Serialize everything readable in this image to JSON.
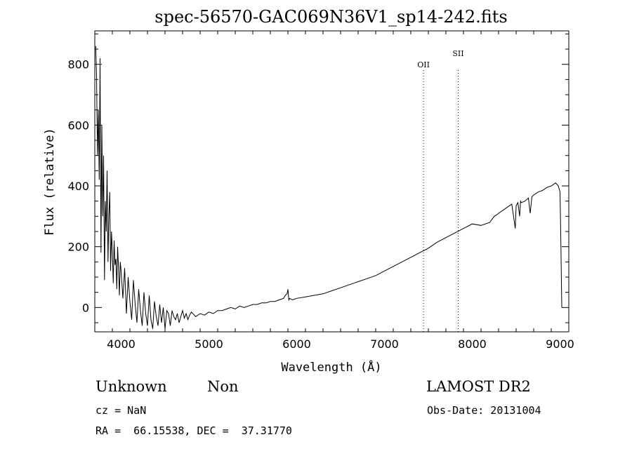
{
  "chart_data": {
    "type": "line",
    "title": "spec-56570-GAC069N36V1_sp14-242.fits",
    "xlabel": "Wavelength (Å)",
    "ylabel": "Flux (relative)",
    "xlim": [
      3700,
      9100
    ],
    "ylim": [
      -80,
      910
    ],
    "grid": false,
    "x_ticks": [
      4000,
      5000,
      6000,
      7000,
      8000,
      9000
    ],
    "y_ticks": [
      0,
      200,
      400,
      600,
      800
    ],
    "series": [
      {
        "x": [
          3710,
          3720,
          3730,
          3740,
          3750,
          3760,
          3770,
          3780,
          3790,
          3800,
          3810,
          3820,
          3830,
          3840,
          3850,
          3860,
          3870,
          3880,
          3890,
          3900,
          3910,
          3920,
          3930,
          3940,
          3950,
          3960,
          3970,
          3980,
          3990,
          4000,
          4020,
          4040,
          4060,
          4080,
          4100,
          4120,
          4140,
          4160,
          4180,
          4200,
          4220,
          4240,
          4260,
          4280,
          4300,
          4320,
          4340,
          4360,
          4380,
          4400,
          4420,
          4440,
          4460,
          4480,
          4500,
          4520,
          4540,
          4560,
          4580,
          4600,
          4620,
          4640,
          4660,
          4680,
          4700,
          4720,
          4740,
          4760,
          4780,
          4800,
          4850,
          4900,
          4950,
          5000,
          5050,
          5100,
          5150,
          5200,
          5250,
          5300,
          5350,
          5400,
          5450,
          5500,
          5550,
          5600,
          5650,
          5700,
          5750,
          5800,
          5850,
          5870,
          5890,
          5900,
          5910,
          5920,
          5950,
          6000,
          6100,
          6200,
          6300,
          6400,
          6500,
          6600,
          6700,
          6800,
          6900,
          7000,
          7100,
          7200,
          7300,
          7400,
          7500,
          7600,
          7700,
          7800,
          7900,
          8000,
          8100,
          8200,
          8250,
          8280,
          8300,
          8350,
          8400,
          8450,
          8490,
          8500,
          8520,
          8540,
          8550,
          8560,
          8600,
          8640,
          8660,
          8680,
          8700,
          8750,
          8800,
          8850,
          8900,
          8950,
          8980,
          9000,
          9010,
          9020
        ],
        "values": [
          860,
          760,
          500,
          650,
          420,
          820,
          180,
          600,
          300,
          500,
          90,
          350,
          250,
          450,
          150,
          300,
          380,
          120,
          250,
          180,
          80,
          220,
          140,
          160,
          60,
          200,
          130,
          40,
          150,
          120,
          30,
          130,
          -20,
          100,
          20,
          -40,
          90,
          10,
          -50,
          60,
          -10,
          -60,
          50,
          -20,
          -60,
          40,
          -40,
          -70,
          20,
          -30,
          -60,
          10,
          -50,
          0,
          -70,
          -10,
          -20,
          -60,
          -10,
          -30,
          -40,
          -20,
          -50,
          -30,
          -10,
          -35,
          -20,
          -40,
          -25,
          -15,
          -30,
          -20,
          -25,
          -15,
          -20,
          -10,
          -10,
          -5,
          0,
          -5,
          5,
          0,
          5,
          10,
          10,
          15,
          15,
          20,
          20,
          25,
          30,
          40,
          45,
          60,
          25,
          30,
          25,
          30,
          35,
          40,
          45,
          55,
          65,
          75,
          85,
          95,
          105,
          120,
          135,
          150,
          165,
          180,
          195,
          215,
          230,
          245,
          260,
          275,
          270,
          280,
          300,
          305,
          310,
          320,
          330,
          340,
          260,
          335,
          345,
          300,
          350,
          345,
          350,
          360,
          310,
          365,
          370,
          380,
          385,
          395,
          400,
          410,
          400,
          380,
          200,
          0
        ]
      }
    ],
    "annotations": [
      {
        "label": "OII",
        "x": 7445
      },
      {
        "label": "SII",
        "x": 7840
      }
    ]
  },
  "info": {
    "class": "Unknown",
    "subclass": "Non",
    "survey": "LAMOST DR2",
    "cz": "cz = NaN",
    "obs_date": "Obs-Date: 20131004",
    "radec": "RA =  66.15538, DEC =  37.31770"
  }
}
